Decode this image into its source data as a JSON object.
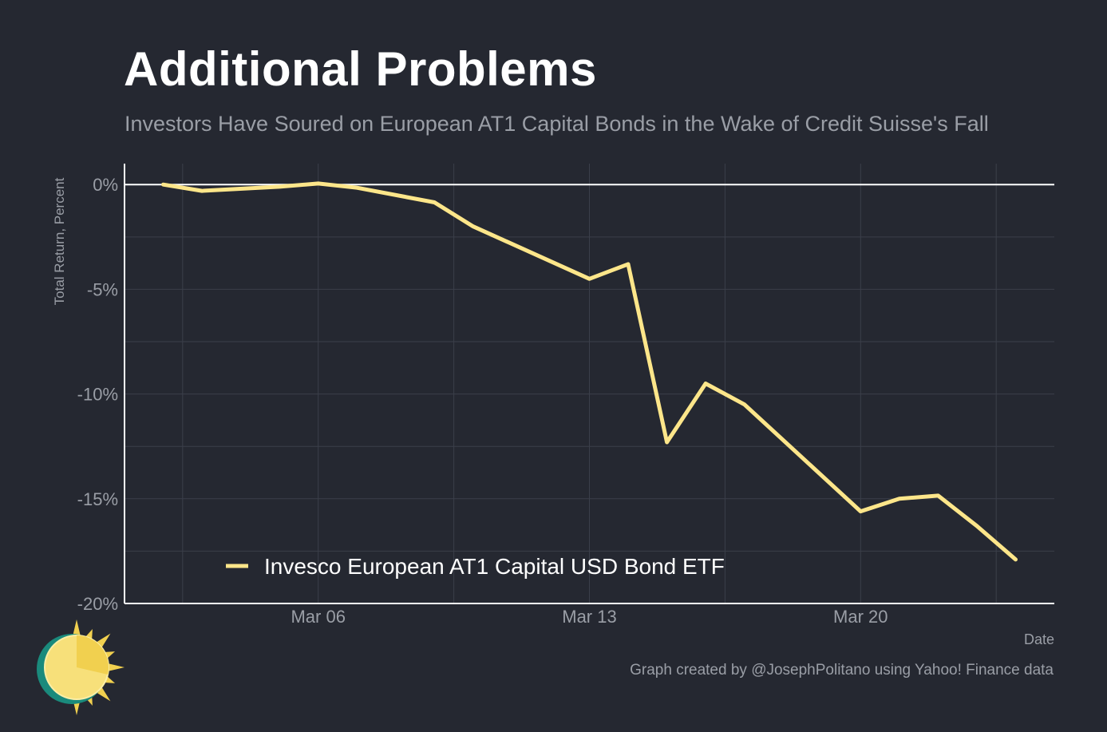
{
  "header": {
    "title": "Additional Problems",
    "subtitle": "Investors Have Soured on European AT1 Capital Bonds in the Wake of Credit Suisse's Fall"
  },
  "caption": "Graph created by @JosephPolitano using Yahoo! Finance data",
  "logo": {
    "icon": "sun-icon",
    "colors": {
      "sun": "#f7e07a",
      "rays": "#f1d04f",
      "ring": "#1a8a7c"
    }
  },
  "colors": {
    "background": "#252831",
    "line": "#fde68a",
    "grid": "#3b3f4a",
    "axis": "#ffffff",
    "muted_text": "#9a9ea6"
  },
  "chart_data": {
    "type": "line",
    "xlabel": "Date",
    "ylabel": "Total Return, Percent",
    "x_ticks": [
      "2023-03-06",
      "2023-03-13",
      "2023-03-20"
    ],
    "x_tick_labels": [
      "Mar 06",
      "Mar 13",
      "Mar 20"
    ],
    "y_ticks": [
      0,
      -5,
      -10,
      -15,
      -20
    ],
    "y_tick_labels": [
      "0%",
      "-5%",
      "-10%",
      "-15%",
      "-20%"
    ],
    "ylim": [
      -20,
      1
    ],
    "xlim": [
      "2023-03-01",
      "2023-03-25"
    ],
    "grid": true,
    "legend_position": "bottom-left",
    "series": [
      {
        "name": "Invesco European AT1 Capital USD Bond ETF",
        "color": "#fde68a",
        "x": [
          "2023-03-02",
          "2023-03-03",
          "2023-03-05",
          "2023-03-06",
          "2023-03-07",
          "2023-03-09",
          "2023-03-10",
          "2023-03-13",
          "2023-03-14",
          "2023-03-15",
          "2023-03-16",
          "2023-03-17",
          "2023-03-20",
          "2023-03-21",
          "2023-03-22",
          "2023-03-23",
          "2023-03-24"
        ],
        "values": [
          0.0,
          -0.3,
          -0.1,
          0.05,
          -0.15,
          -0.85,
          -2.0,
          -4.5,
          -3.8,
          -12.3,
          -9.5,
          -10.5,
          -15.6,
          -15.0,
          -14.85,
          -16.3,
          -17.9
        ]
      }
    ]
  }
}
